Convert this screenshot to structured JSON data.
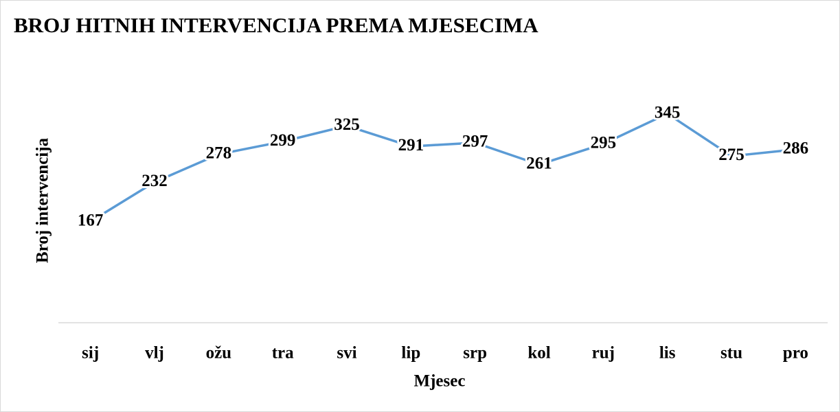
{
  "chart_data": {
    "type": "line",
    "title": "BROJ HITNIH INTERVENCIJA PREMA MJESECIMA",
    "x_label": "Mjesec",
    "y_label": "Broj intervencija",
    "categories": [
      "sij",
      "vlj",
      "ožu",
      "tra",
      "svi",
      "lip",
      "srp",
      "kol",
      "ruj",
      "lis",
      "stu",
      "pro"
    ],
    "values": [
      167,
      232,
      278,
      299,
      325,
      291,
      297,
      261,
      295,
      345,
      275,
      286
    ],
    "color": "#5b9bd5",
    "ylim": [
      0,
      400
    ],
    "grid": false
  }
}
